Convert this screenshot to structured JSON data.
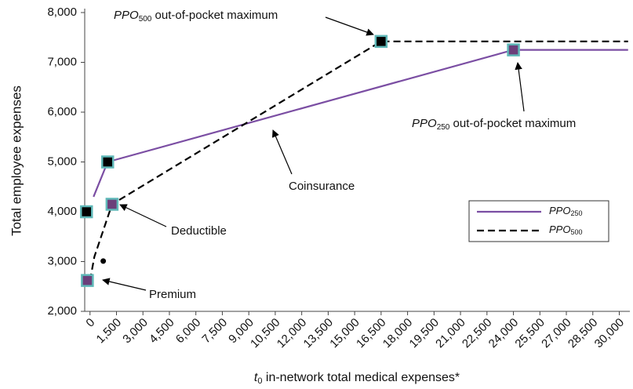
{
  "chart_data": {
    "type": "line",
    "y_label": "Total employee expenses",
    "x_label": {
      "main": "t",
      "sub": "0",
      "rest": " in-network total medical expenses*"
    },
    "xlim": [
      -300,
      30600
    ],
    "ylim": [
      2000,
      8000
    ],
    "xticks": [
      {
        "value": 0,
        "label": "0"
      },
      {
        "value": 1500,
        "label": "1,500"
      },
      {
        "value": 3000,
        "label": "3,000"
      },
      {
        "value": 4500,
        "label": "4,500"
      },
      {
        "value": 6000,
        "label": "6,000"
      },
      {
        "value": 7500,
        "label": "7,500"
      },
      {
        "value": 9000,
        "label": "9,000"
      },
      {
        "value": 10500,
        "label": "10,500"
      },
      {
        "value": 12000,
        "label": "12,000"
      },
      {
        "value": 13500,
        "label": "13,500"
      },
      {
        "value": 15000,
        "label": "15,000"
      },
      {
        "value": 16500,
        "label": "16,500"
      },
      {
        "value": 18000,
        "label": "18,000"
      },
      {
        "value": 19500,
        "label": "19,500"
      },
      {
        "value": 21000,
        "label": "21,000"
      },
      {
        "value": 22500,
        "label": "22,500"
      },
      {
        "value": 24000,
        "label": "24,000"
      },
      {
        "value": 25500,
        "label": "25,500"
      },
      {
        "value": 27000,
        "label": "27,000"
      },
      {
        "value": 28500,
        "label": "28,500"
      },
      {
        "value": 30000,
        "label": "30,000"
      }
    ],
    "yticks": [
      {
        "value": 2000,
        "label": "2,000"
      },
      {
        "value": 3000,
        "label": "3,000"
      },
      {
        "value": 4000,
        "label": "4,000"
      },
      {
        "value": 5000,
        "label": "5,000"
      },
      {
        "value": 6000,
        "label": "6,000"
      },
      {
        "value": 7000,
        "label": "7,000"
      },
      {
        "value": 8000,
        "label": "8,000"
      }
    ],
    "series": [
      {
        "name": "PPO",
        "name_sub": "250",
        "color": "#7b4ea3",
        "dash": false,
        "x": [
          200,
          1000,
          24000,
          30500
        ],
        "values": [
          4300,
          5000,
          7250,
          7250
        ]
      },
      {
        "name": "PPO",
        "name_sub": "500",
        "color": "#000000",
        "dash": true,
        "x": [
          0,
          250,
          1250,
          16500,
          30500
        ],
        "values": [
          2620,
          3100,
          4150,
          7420,
          7420
        ]
      }
    ],
    "markers": [
      {
        "x": -200,
        "y": 4000,
        "fill": "#000000"
      },
      {
        "x": 1000,
        "y": 5000,
        "fill": "#000000"
      },
      {
        "x": 16500,
        "y": 7420,
        "fill": "#000000"
      },
      {
        "x": -150,
        "y": 2620,
        "fill": "#6b3f7a"
      },
      {
        "x": 1250,
        "y": 4150,
        "fill": "#6b3f7a"
      },
      {
        "x": 24000,
        "y": 7250,
        "fill": "#6b3f7a"
      }
    ],
    "dot": {
      "x": 750,
      "y": 3010
    },
    "annotations": [
      {
        "main": "PPO",
        "sub": "500",
        "rest": " out-of-pocket maximum"
      },
      {
        "main": "PPO",
        "sub": "250",
        "rest": " out-of-pocket maximum"
      },
      {
        "text": "Coinsurance"
      },
      {
        "text": "Deductible"
      },
      {
        "text": "Premium"
      }
    ],
    "legend": "right"
  }
}
